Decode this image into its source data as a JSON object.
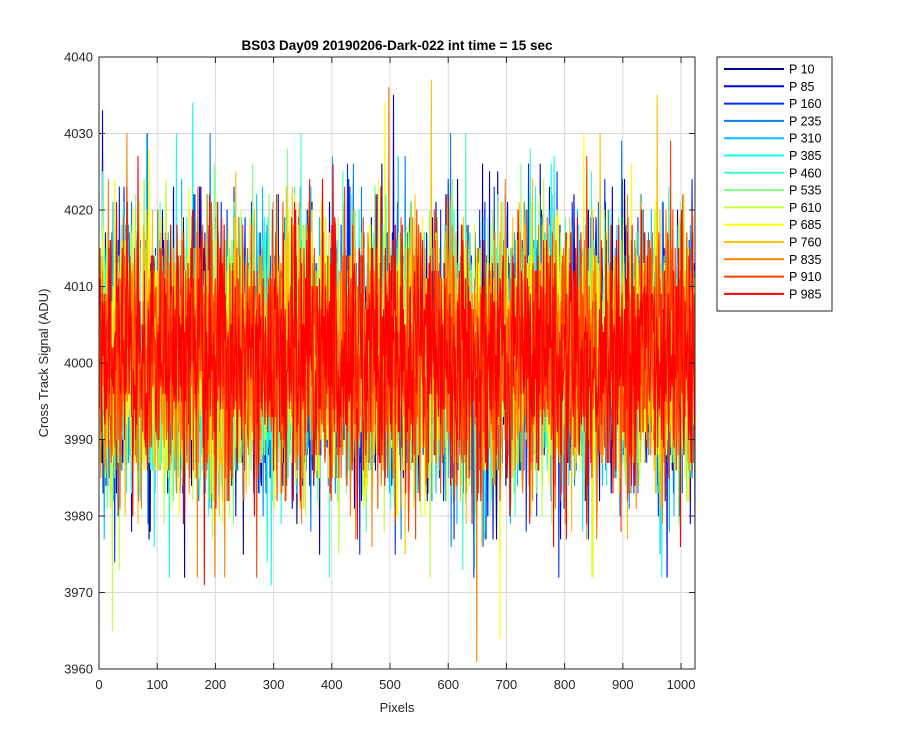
{
  "chart_data": {
    "type": "line",
    "title": "BS03 Day09 20190206-Dark-022 int time = 15 sec",
    "xlabel": "Pixels",
    "ylabel": "Cross Track Signal (ADU)",
    "xlim": [
      0,
      1024
    ],
    "ylim": [
      3960,
      4040
    ],
    "xticks": [
      0,
      100,
      200,
      300,
      400,
      500,
      600,
      700,
      800,
      900,
      1000
    ],
    "yticks": [
      3960,
      3970,
      3980,
      3990,
      4000,
      4010,
      4020,
      4030,
      4040
    ],
    "grid": true,
    "legend_position": "outside-top-right",
    "n_points": 1024,
    "noise": {
      "mean": 4001,
      "spread": 8.5
    },
    "series": [
      {
        "name": "P 10",
        "color": "#00008F"
      },
      {
        "name": "P 85",
        "color": "#0000DF"
      },
      {
        "name": "P 160",
        "color": "#0030FF"
      },
      {
        "name": "P 235",
        "color": "#0080FF"
      },
      {
        "name": "P 310",
        "color": "#00BFFF"
      },
      {
        "name": "P 385",
        "color": "#10FFEF"
      },
      {
        "name": "P 460",
        "color": "#40FFBF"
      },
      {
        "name": "P 535",
        "color": "#80FF80"
      },
      {
        "name": "P 610",
        "color": "#BFFF40"
      },
      {
        "name": "P 685",
        "color": "#FFFF00"
      },
      {
        "name": "P 760",
        "color": "#FFBF00"
      },
      {
        "name": "P 835",
        "color": "#FF8000"
      },
      {
        "name": "P 910",
        "color": "#FF4000"
      },
      {
        "name": "P 985",
        "color": "#FF0000"
      }
    ],
    "spikes": [
      {
        "series": 1,
        "x": 5,
        "y": 4033
      },
      {
        "series": 8,
        "x": 22,
        "y": 3965
      },
      {
        "series": 5,
        "x": 160,
        "y": 4034
      },
      {
        "series": 9,
        "x": 490,
        "y": 4034
      },
      {
        "series": 11,
        "x": 497,
        "y": 4036
      },
      {
        "series": 1,
        "x": 505,
        "y": 4035
      },
      {
        "series": 10,
        "x": 570,
        "y": 4037
      },
      {
        "series": 11,
        "x": 648,
        "y": 3961
      },
      {
        "series": 9,
        "x": 688,
        "y": 3964
      },
      {
        "series": 10,
        "x": 958,
        "y": 4035
      },
      {
        "series": 1,
        "x": 975,
        "y": 3972
      },
      {
        "series": 13,
        "x": 180,
        "y": 3971
      },
      {
        "series": 12,
        "x": 270,
        "y": 3972
      },
      {
        "series": 5,
        "x": 295,
        "y": 3971
      }
    ]
  }
}
